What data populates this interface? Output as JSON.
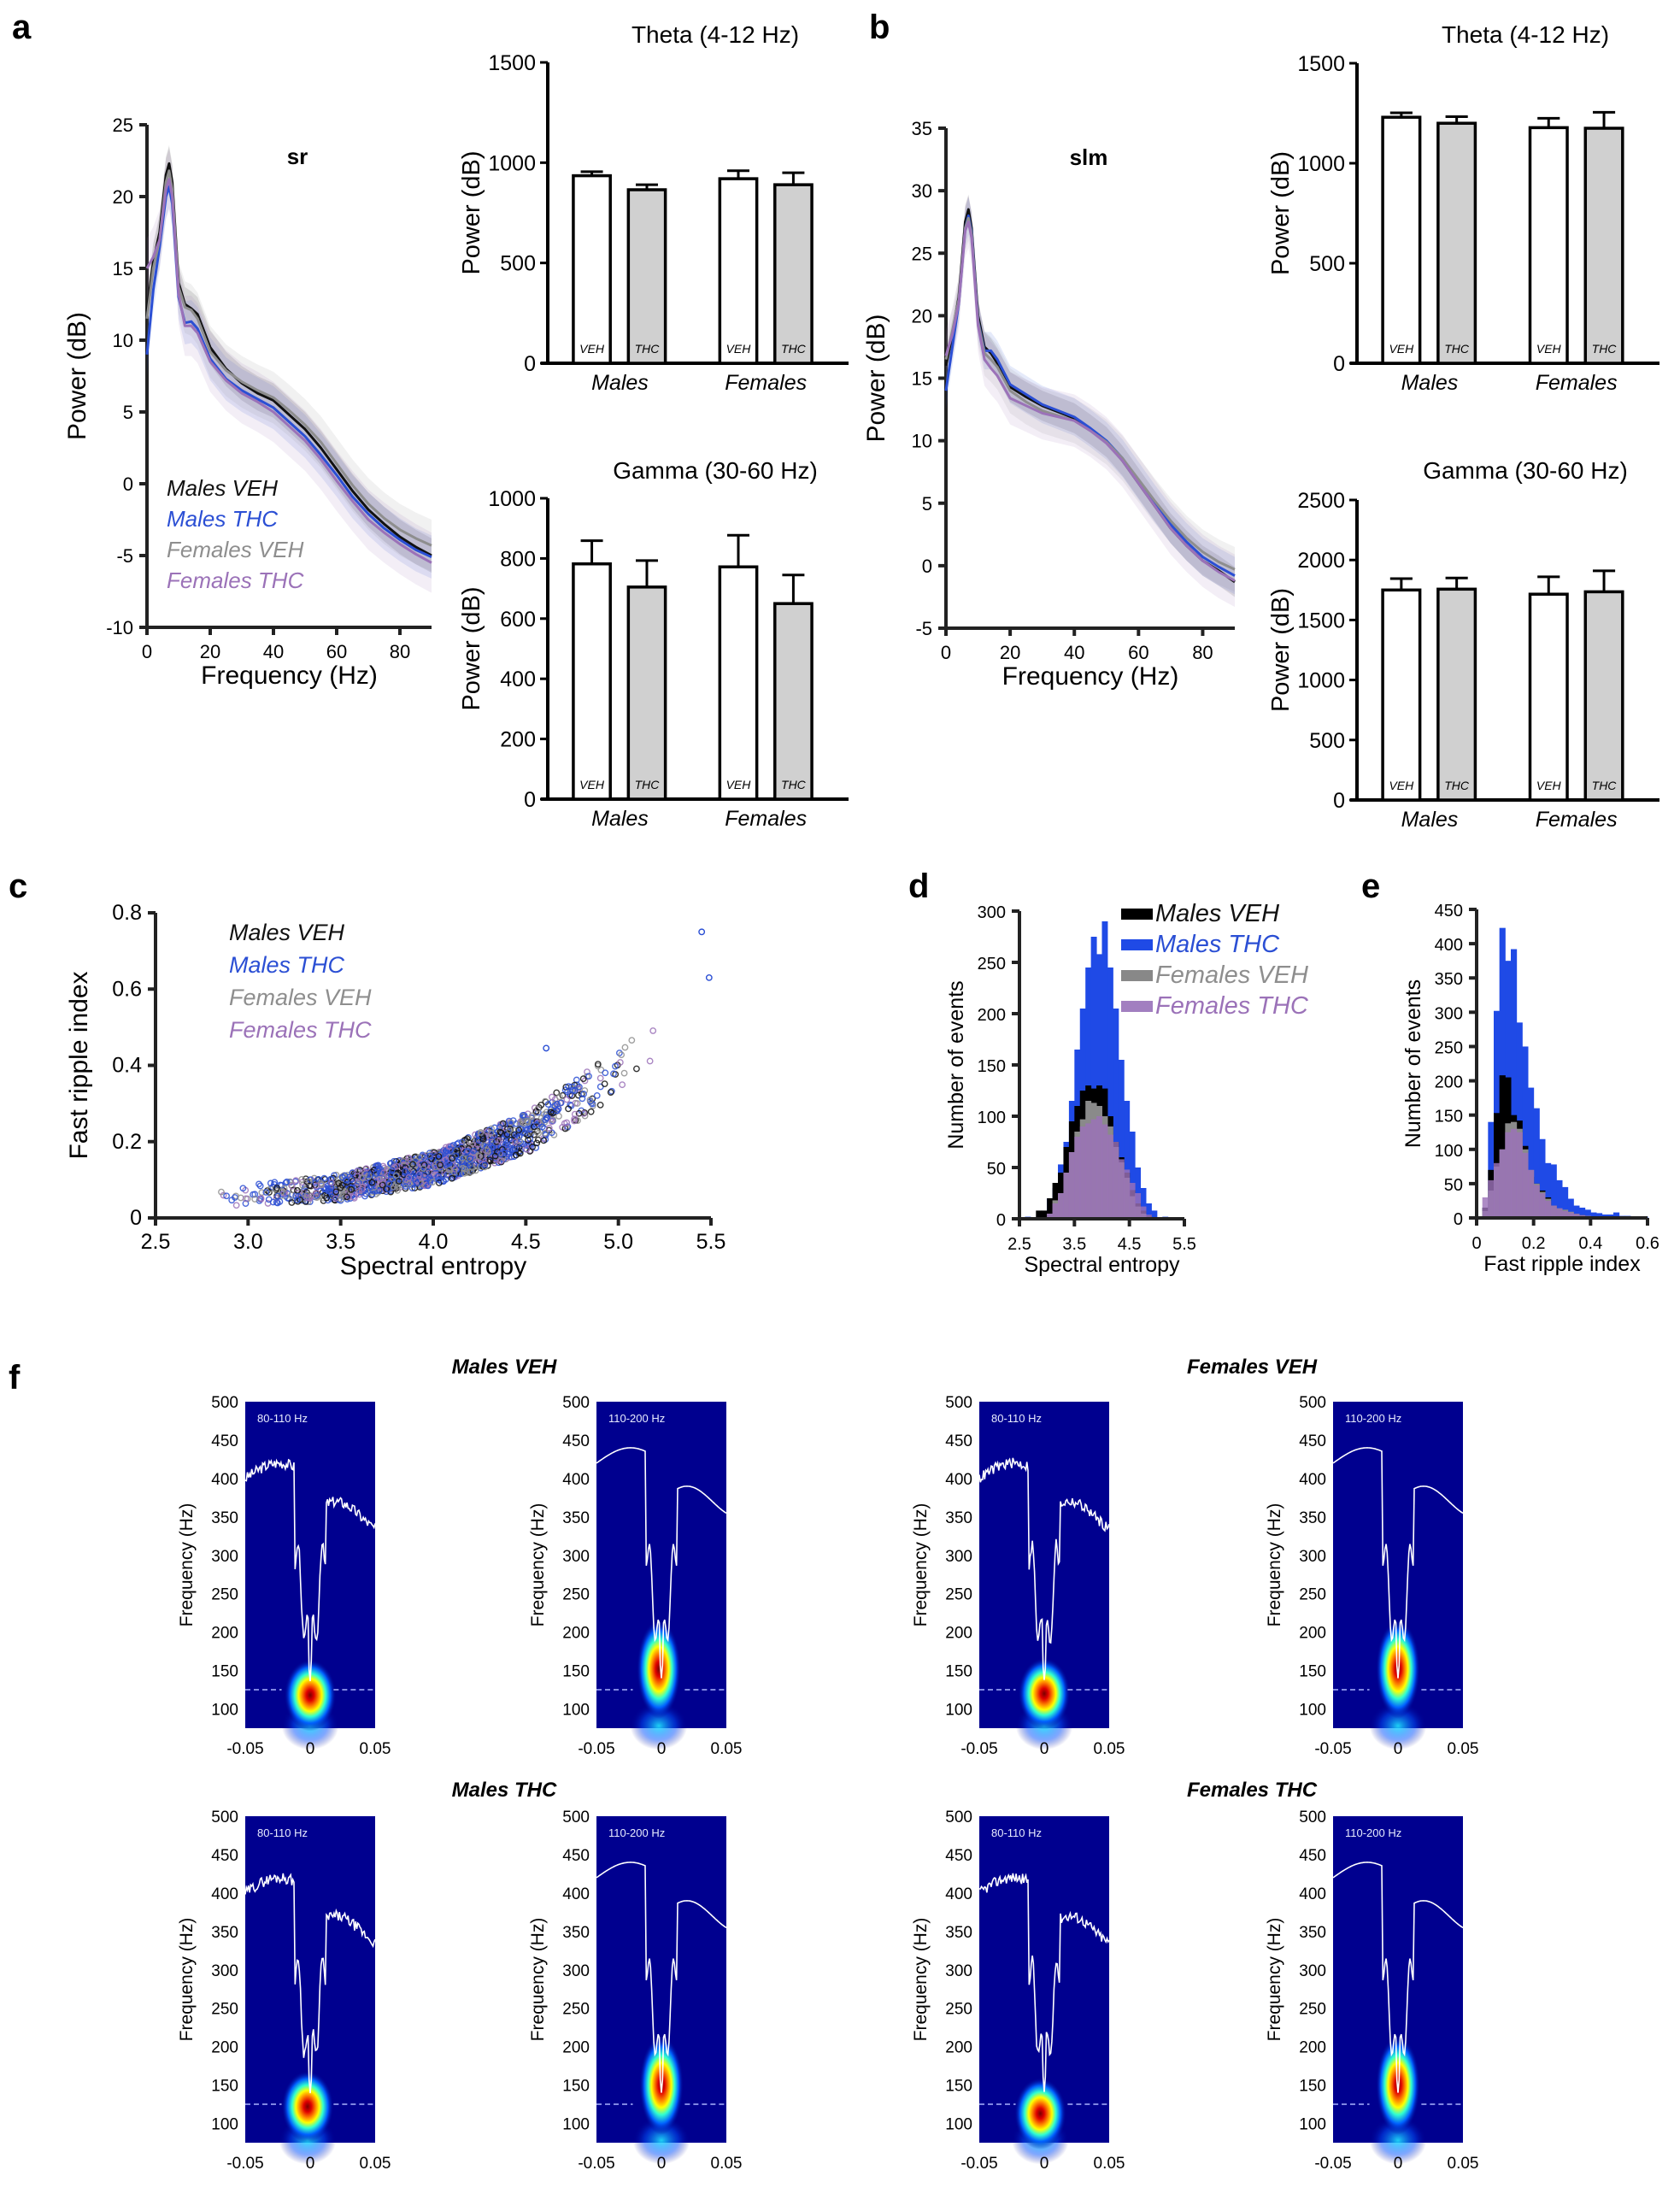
{
  "panels": {
    "a": "a",
    "b": "b",
    "c": "c",
    "d": "d",
    "e": "e",
    "f": "f"
  },
  "legend_groups": [
    {
      "name": "Males VEH",
      "color": "#111111"
    },
    {
      "name": "Males THC",
      "color": "#2b4fd4"
    },
    {
      "name": "Females VEH",
      "color": "#8e8e8e"
    },
    {
      "name": "Females THC",
      "color": "#9b72b8"
    }
  ],
  "chart_data": [
    {
      "id": "a-psd",
      "type": "line",
      "title": "sr",
      "xlabel": "Frequency (Hz)",
      "ylabel": "Power (dB)",
      "xlim": [
        0,
        90
      ],
      "ylim": [
        -10,
        25
      ],
      "xticks": [
        0,
        20,
        40,
        60,
        80
      ],
      "yticks": [
        -10,
        -5,
        0,
        5,
        10,
        15,
        20,
        25
      ],
      "legend": "bottom-left",
      "x": [
        0,
        2,
        4,
        6,
        7,
        8,
        10,
        12,
        14,
        16,
        20,
        25,
        30,
        35,
        40,
        45,
        50,
        55,
        60,
        65,
        70,
        75,
        80,
        85,
        90
      ],
      "series": [
        {
          "name": "Males VEH",
          "values": [
            12,
            15.5,
            17.5,
            21.5,
            22.3,
            21,
            14,
            12.5,
            12.2,
            11.8,
            9.5,
            8,
            7,
            6.3,
            5.8,
            4.8,
            3.8,
            2.5,
            1,
            -0.5,
            -1.8,
            -2.8,
            -3.7,
            -4.4,
            -5.0
          ]
        },
        {
          "name": "Males THC",
          "values": [
            9,
            13.5,
            16.5,
            20,
            20.7,
            19.5,
            13,
            11.2,
            11.3,
            10.8,
            8.7,
            7.3,
            6.5,
            5.9,
            5.3,
            4.3,
            3.3,
            2.0,
            0.6,
            -0.9,
            -2.1,
            -3.1,
            -3.9,
            -4.6,
            -5.1
          ]
        },
        {
          "name": "Females VEH",
          "values": [
            11.5,
            15,
            17,
            21,
            21.8,
            20.5,
            13.7,
            12.3,
            12.1,
            11.5,
            9.2,
            7.9,
            7.1,
            6.5,
            6.0,
            5.1,
            4.1,
            2.9,
            1.4,
            -0.1,
            -1.4,
            -2.4,
            -3.2,
            -3.8,
            -4.3
          ]
        },
        {
          "name": "Females THC",
          "values": [
            15,
            15.8,
            17,
            20.5,
            21.2,
            20,
            13.2,
            11.0,
            11.0,
            10.5,
            8.5,
            7.2,
            6.3,
            5.7,
            5.0,
            4.0,
            3.0,
            1.7,
            0.2,
            -1.2,
            -2.5,
            -3.4,
            -4.2,
            -4.9,
            -5.5
          ]
        }
      ]
    },
    {
      "id": "a-theta",
      "type": "bar",
      "title": "Theta (4-12 Hz)",
      "ylabel": "Power (dB)",
      "ylim": [
        0,
        1500
      ],
      "yticks": [
        0,
        500,
        1000,
        1500
      ],
      "groups": [
        "Males",
        "Females"
      ],
      "bar_labels": [
        "VEH",
        "THC"
      ],
      "values": [
        [
          935,
          865
        ],
        [
          920,
          890
        ]
      ],
      "errors": [
        [
          20,
          25
        ],
        [
          40,
          60
        ]
      ]
    },
    {
      "id": "a-gamma",
      "type": "bar",
      "title": "Gamma (30-60 Hz)",
      "ylabel": "Power (dB)",
      "ylim": [
        0,
        1000
      ],
      "yticks": [
        0,
        200,
        400,
        600,
        800,
        1000
      ],
      "groups": [
        "Males",
        "Females"
      ],
      "bar_labels": [
        "VEH",
        "THC"
      ],
      "values": [
        [
          782,
          705
        ],
        [
          772,
          650
        ]
      ],
      "errors": [
        [
          77,
          88
        ],
        [
          105,
          95
        ]
      ]
    },
    {
      "id": "b-psd",
      "type": "line",
      "title": "slm",
      "xlabel": "Frequency (Hz)",
      "ylabel": "Power (dB)",
      "xlim": [
        0,
        90
      ],
      "ylim": [
        -5,
        35
      ],
      "xticks": [
        0,
        20,
        40,
        60,
        80
      ],
      "yticks": [
        -5,
        0,
        5,
        10,
        15,
        20,
        25,
        30,
        35
      ],
      "x": [
        0,
        2,
        4,
        6,
        7,
        8,
        10,
        12,
        14,
        16,
        20,
        25,
        30,
        35,
        40,
        45,
        50,
        55,
        60,
        65,
        70,
        75,
        80,
        85,
        90
      ],
      "series": [
        {
          "name": "Males VEH",
          "values": [
            16,
            18.5,
            21.5,
            27.5,
            28.5,
            27,
            20,
            17.5,
            17.0,
            16.2,
            14.3,
            13.5,
            12.8,
            12.3,
            11.8,
            10.9,
            9.9,
            8.4,
            6.6,
            4.8,
            3.0,
            1.6,
            0.4,
            -0.4,
            -1.3
          ]
        },
        {
          "name": "Males THC",
          "values": [
            14,
            17.5,
            21,
            27,
            28.0,
            26.7,
            19.6,
            17.2,
            17.2,
            16.5,
            14.5,
            13.7,
            12.9,
            12.4,
            11.9,
            11.0,
            10.0,
            8.6,
            6.8,
            5.0,
            3.3,
            1.9,
            0.7,
            -0.1,
            -0.8
          ]
        },
        {
          "name": "Females VEH",
          "values": [
            16.5,
            18.8,
            21.3,
            27,
            27.8,
            26.5,
            19.5,
            17.0,
            16.5,
            15.9,
            14.0,
            13.1,
            12.4,
            12.0,
            11.6,
            10.8,
            9.9,
            8.6,
            6.9,
            5.2,
            3.6,
            2.2,
            1.1,
            0.3,
            -0.3
          ]
        },
        {
          "name": "Females THC",
          "values": [
            16.8,
            18.5,
            21,
            26.8,
            27.5,
            26.2,
            19.2,
            16.5,
            15.8,
            15.2,
            13.4,
            12.8,
            12.2,
            11.9,
            11.6,
            10.8,
            9.8,
            8.4,
            6.6,
            4.8,
            3.0,
            1.6,
            0.4,
            -0.5,
            -1.2
          ]
        }
      ]
    },
    {
      "id": "b-theta",
      "type": "bar",
      "title": "Theta (4-12 Hz)",
      "ylabel": "Power (dB)",
      "ylim": [
        0,
        1500
      ],
      "yticks": [
        0,
        500,
        1000,
        1500
      ],
      "groups": [
        "Males",
        "Females"
      ],
      "bar_labels": [
        "VEH",
        "THC"
      ],
      "values": [
        [
          1230,
          1200
        ],
        [
          1178,
          1175
        ]
      ],
      "errors": [
        [
          22,
          33
        ],
        [
          47,
          80
        ]
      ]
    },
    {
      "id": "b-gamma",
      "type": "bar",
      "title": "Gamma (30-60 Hz)",
      "ylabel": "Power (dB)",
      "ylim": [
        0,
        2500
      ],
      "yticks": [
        0,
        500,
        1000,
        1500,
        2000,
        2500
      ],
      "groups": [
        "Males",
        "Females"
      ],
      "bar_labels": [
        "VEH",
        "THC"
      ],
      "values": [
        [
          1750,
          1757
        ],
        [
          1715,
          1735
        ]
      ],
      "errors": [
        [
          95,
          93
        ],
        [
          145,
          175
        ]
      ]
    },
    {
      "id": "c-scatter",
      "type": "scatter",
      "xlabel": "Spectral entropy",
      "ylabel": "Fast ripple index",
      "xlim": [
        2.5,
        5.5
      ],
      "ylim": [
        0,
        0.8
      ],
      "xticks": [
        2.5,
        3.0,
        3.5,
        4.0,
        4.5,
        5.0,
        5.5
      ],
      "yticks": [
        0,
        0.2,
        0.4,
        0.6,
        0.8
      ],
      "legend": "top-left",
      "trend": {
        "description": "points follow a convex curve rising from ~0.05 at 2.7 to ~0.6 at 5.4",
        "x": [
          2.7,
          3.0,
          3.5,
          4.0,
          4.5,
          5.0,
          5.3,
          5.5
        ],
        "y": [
          0.045,
          0.06,
          0.08,
          0.13,
          0.22,
          0.38,
          0.5,
          0.6
        ]
      },
      "outliers": [
        {
          "x": 5.45,
          "y": 0.75
        },
        {
          "x": 5.49,
          "y": 0.63
        },
        {
          "x": 4.61,
          "y": 0.445
        }
      ]
    },
    {
      "id": "d-hist",
      "type": "bar",
      "subtype": "histogram",
      "xlabel": "Spectral entropy",
      "ylabel": "Number of events",
      "xlim": [
        2.5,
        5.5
      ],
      "ylim": [
        0,
        300
      ],
      "xticks": [
        2.5,
        3.5,
        4.5,
        5.5
      ],
      "yticks": [
        0,
        50,
        100,
        150,
        200,
        250,
        300
      ],
      "legend": "top-right",
      "bin_edges": [
        2.6,
        2.7,
        2.8,
        2.9,
        3.0,
        3.1,
        3.2,
        3.3,
        3.4,
        3.5,
        3.6,
        3.7,
        3.8,
        3.9,
        4.0,
        4.1,
        4.2,
        4.3,
        4.4,
        4.5,
        4.6,
        4.7,
        4.8,
        4.9,
        5.0,
        5.1,
        5.2,
        5.3
      ],
      "series": [
        {
          "name": "Males THC",
          "values": [
            2,
            0,
            2,
            6,
            20,
            30,
            53,
            75,
            115,
            165,
            205,
            245,
            275,
            258,
            290,
            245,
            205,
            155,
            115,
            85,
            50,
            30,
            15,
            8,
            0,
            2,
            0
          ]
        },
        {
          "name": "Males VEH",
          "values": [
            0,
            0,
            8,
            8,
            20,
            35,
            45,
            70,
            95,
            110,
            125,
            130,
            127,
            130,
            127,
            100,
            75,
            60,
            45,
            28,
            15,
            8,
            3,
            0,
            0,
            0,
            0
          ]
        },
        {
          "name": "Females VEH",
          "values": [
            0,
            0,
            0,
            0,
            5,
            18,
            25,
            45,
            65,
            85,
            97,
            115,
            113,
            110,
            100,
            90,
            70,
            55,
            40,
            22,
            12,
            5,
            2,
            0,
            0,
            0,
            0
          ]
        },
        {
          "name": "Females THC",
          "values": [
            0,
            0,
            0,
            0,
            5,
            15,
            25,
            45,
            65,
            80,
            90,
            93,
            97,
            100,
            92,
            82,
            75,
            58,
            48,
            35,
            25,
            12,
            4,
            0,
            0,
            0,
            0
          ]
        }
      ]
    },
    {
      "id": "e-hist",
      "type": "bar",
      "subtype": "histogram",
      "xlabel": "Fast ripple index",
      "ylabel": "Number of events",
      "xlim": [
        0,
        0.6
      ],
      "ylim": [
        0,
        450
      ],
      "xticks": [
        0,
        0.2,
        0.4,
        0.6
      ],
      "yticks": [
        0,
        50,
        100,
        150,
        200,
        250,
        300,
        350,
        400,
        450
      ],
      "bin_edges": [
        0.02,
        0.04,
        0.06,
        0.08,
        0.1,
        0.12,
        0.14,
        0.16,
        0.18,
        0.2,
        0.22,
        0.24,
        0.26,
        0.28,
        0.3,
        0.32,
        0.34,
        0.36,
        0.38,
        0.4,
        0.42,
        0.44,
        0.46,
        0.48,
        0.5,
        0.52,
        0.54,
        0.56,
        0.58,
        0.6
      ],
      "series": [
        {
          "name": "Males THC",
          "values": [
            15,
            140,
            302,
            423,
            375,
            392,
            285,
            250,
            190,
            160,
            115,
            80,
            78,
            55,
            45,
            28,
            18,
            15,
            12,
            8,
            7,
            5,
            5,
            8,
            3,
            3,
            2,
            2,
            2
          ]
        },
        {
          "name": "Males VEH",
          "values": [
            15,
            70,
            153,
            208,
            205,
            150,
            142,
            105,
            60,
            50,
            40,
            30,
            18,
            12,
            10,
            8,
            6,
            4,
            3,
            2,
            1,
            1,
            0,
            0,
            0,
            0,
            0,
            0,
            0
          ]
        },
        {
          "name": "Females VEH",
          "values": [
            10,
            40,
            75,
            100,
            138,
            140,
            130,
            100,
            70,
            50,
            38,
            28,
            18,
            14,
            12,
            9,
            6,
            4,
            3,
            2,
            1,
            0,
            0,
            0,
            0,
            0,
            0,
            0,
            0
          ]
        },
        {
          "name": "Females THC",
          "values": [
            30,
            55,
            80,
            100,
            125,
            130,
            125,
            95,
            70,
            48,
            36,
            25,
            18,
            14,
            10,
            8,
            6,
            4,
            3,
            2,
            1,
            0,
            0,
            0,
            0,
            0,
            0,
            0,
            0
          ]
        }
      ]
    },
    {
      "id": "f-spectrograms",
      "type": "heatmap",
      "ylabel": "Frequency (Hz)",
      "xlim": [
        -0.05,
        0.05
      ],
      "ylim": [
        75,
        500
      ],
      "xticks": [
        -0.05,
        0,
        0.05
      ],
      "xtick_labels": [
        "-0.05",
        "0",
        "0.05"
      ],
      "yticks": [
        100,
        150,
        200,
        250,
        300,
        350,
        400,
        450,
        500
      ],
      "dashed_line_freq": 125,
      "groups": [
        {
          "title": "Males VEH",
          "panels": [
            {
              "band": "80-110 Hz",
              "peak_freq": 118,
              "peak_time": 0.0
            },
            {
              "band": "110-200 Hz",
              "peak_freq": 152,
              "peak_time": -0.002
            }
          ]
        },
        {
          "title": "Females VEH",
          "panels": [
            {
              "band": "80-110 Hz",
              "peak_freq": 120,
              "peak_time": 0.0
            },
            {
              "band": "110-200 Hz",
              "peak_freq": 152,
              "peak_time": 0.0
            }
          ]
        },
        {
          "title": "Males THC",
          "panels": [
            {
              "band": "80-110 Hz",
              "peak_freq": 122,
              "peak_time": -0.002
            },
            {
              "band": "110-200 Hz",
              "peak_freq": 150,
              "peak_time": 0.0
            }
          ]
        },
        {
          "title": "Females THC",
          "panels": [
            {
              "band": "80-110 Hz",
              "peak_freq": 113,
              "peak_time": -0.003
            },
            {
              "band": "110-200 Hz",
              "peak_freq": 150,
              "peak_time": 0.0
            }
          ]
        }
      ]
    }
  ]
}
